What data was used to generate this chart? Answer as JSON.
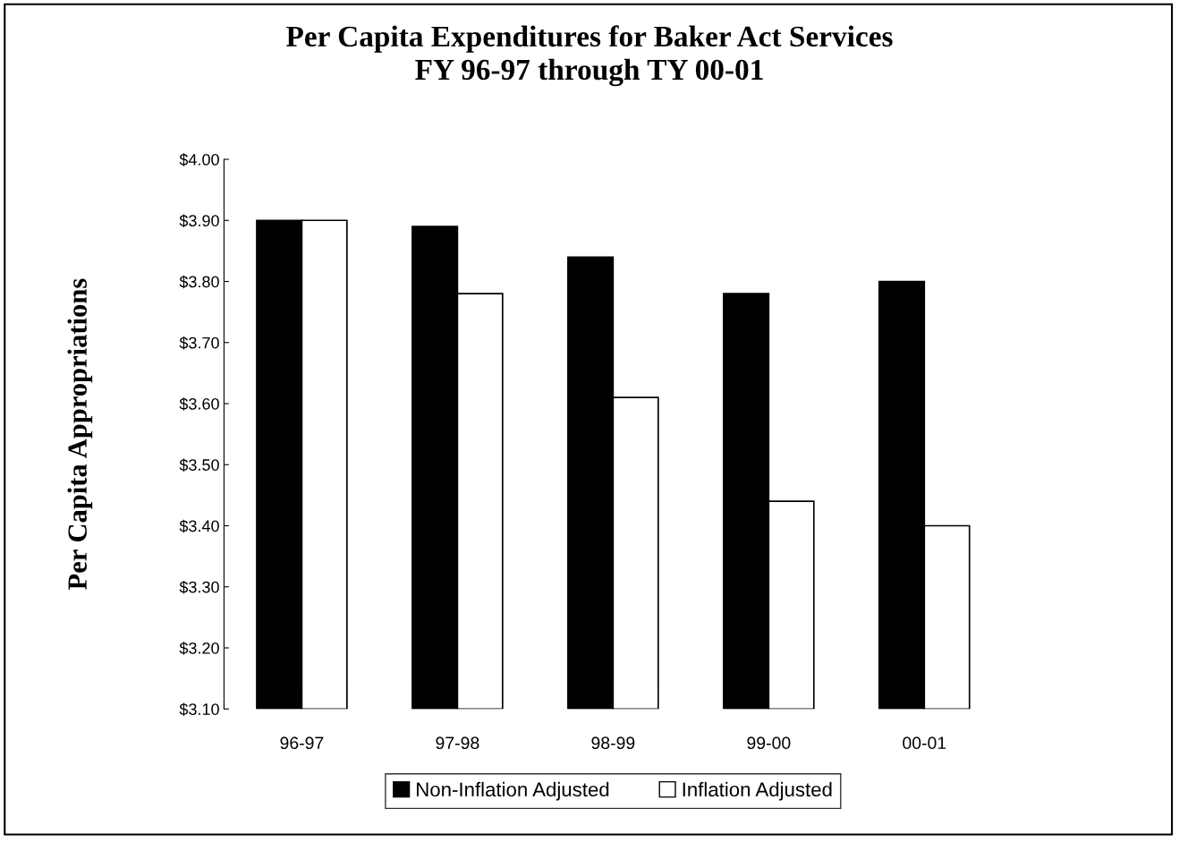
{
  "chart_data": {
    "type": "bar",
    "title": "Per Capita Expenditures for Baker Act Services\nFY 96-97 through TY 00-01",
    "ylabel": "Per Capita Appropriations",
    "categories": [
      "96-97",
      "97-98",
      "98-99",
      "99-00",
      "00-01"
    ],
    "series": [
      {
        "name": "Non-Inflation Adjusted",
        "color": "#000000",
        "values": [
          3.9,
          3.89,
          3.84,
          3.78,
          3.8
        ]
      },
      {
        "name": "Inflation Adjusted",
        "color": "#ffffff",
        "values": [
          3.9,
          3.78,
          3.61,
          3.44,
          3.4
        ]
      }
    ],
    "ylim": [
      3.1,
      4.0
    ],
    "yticks": [
      {
        "value": 3.1,
        "label": "$3.10"
      },
      {
        "value": 3.2,
        "label": "$3.20"
      },
      {
        "value": 3.3,
        "label": "$3.30"
      },
      {
        "value": 3.4,
        "label": "$3.40"
      },
      {
        "value": 3.5,
        "label": "$3.50"
      },
      {
        "value": 3.6,
        "label": "$3.60"
      },
      {
        "value": 3.7,
        "label": "$3.70"
      },
      {
        "value": 3.8,
        "label": "$3.80"
      },
      {
        "value": 3.9,
        "label": "$3.90"
      },
      {
        "value": 4.0,
        "label": "$4.00"
      }
    ],
    "legend": "bottom",
    "grid": false
  }
}
